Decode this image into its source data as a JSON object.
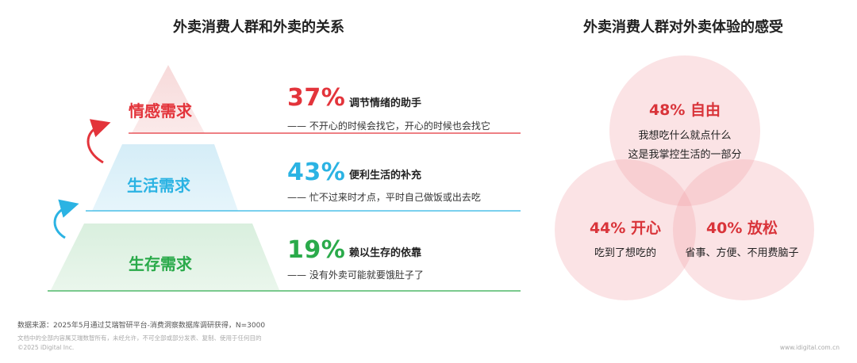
{
  "left": {
    "title": "外卖消费人群和外卖的关系",
    "tiers": [
      {
        "label": "情感需求",
        "percent": "37%",
        "headline": "调节情绪的助手",
        "quote": "—— 不开心的时候会找它，开心的时候也会找它",
        "color": "#e3343b"
      },
      {
        "label": "生活需求",
        "percent": "43%",
        "headline": "便利生活的补充",
        "quote": "—— 忙不过来时才点，平时自己做饭或出去吃",
        "color": "#2bb3e3"
      },
      {
        "label": "生存需求",
        "percent": "19%",
        "headline": "赖以生存的依靠",
        "quote": "—— 没有外卖可能就要饿肚子了",
        "color": "#2aaa4a"
      }
    ]
  },
  "right": {
    "title": "外卖消费人群对外卖体验的感受",
    "circles": [
      {
        "title": "48% 自由",
        "lines": [
          "我想吃什么就点什么",
          "这是我掌控生活的一部分"
        ]
      },
      {
        "title": "44% 开心",
        "lines": [
          "吃到了想吃的"
        ]
      },
      {
        "title": "40% 放松",
        "lines": [
          "省事、方便、不用费脑子"
        ]
      }
    ]
  },
  "chart_data": [
    {
      "type": "bar",
      "title": "外卖消费人群和外卖的关系",
      "categories": [
        "情感需求",
        "生活需求",
        "生存需求"
      ],
      "values": [
        37,
        43,
        19
      ],
      "unit": "%"
    },
    {
      "type": "bar",
      "title": "外卖消费人群对外卖体验的感受",
      "categories": [
        "自由",
        "开心",
        "放松"
      ],
      "values": [
        48,
        44,
        40
      ],
      "unit": "%"
    }
  ],
  "footer": {
    "source": "数据来源：2025年5月通过艾瑞智研平台-消费洞察数据库调研获得，N=3000",
    "rights": "文档中的全部内容属艾瑞数智所有，未经允许，不可全部或部分发表、复制、使用于任何目的",
    "copyright": "©2025 iDigital Inc.",
    "website": "www.idigital.com.cn"
  }
}
